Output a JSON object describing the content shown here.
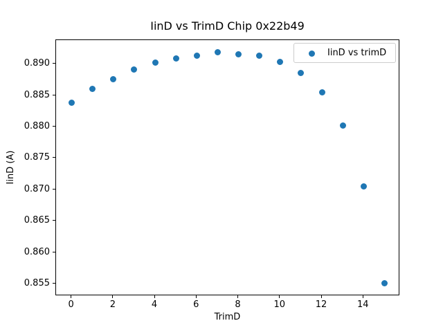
{
  "chart_data": {
    "type": "scatter",
    "title": "IinD vs TrimD Chip 0x22b49",
    "xlabel": "TrimD",
    "ylabel": "IinD (A)",
    "series": [
      {
        "name": "IinD vs trimD",
        "color": "#1f77b4",
        "x": [
          0,
          1,
          2,
          3,
          4,
          5,
          6,
          7,
          8,
          9,
          10,
          11,
          12,
          13,
          14,
          15
        ],
        "y": [
          0.8839,
          0.886,
          0.8876,
          0.8891,
          0.8902,
          0.8909,
          0.8913,
          0.8919,
          0.8916,
          0.8913,
          0.8903,
          0.8886,
          0.8855,
          0.8802,
          0.8705,
          0.8551
        ]
      }
    ],
    "xlim": [
      -0.75,
      15.75
    ],
    "ylim": [
      0.8531,
      0.8938
    ],
    "xticks": [
      0,
      2,
      4,
      6,
      8,
      10,
      12,
      14
    ],
    "xtick_labels": [
      "0",
      "2",
      "4",
      "6",
      "8",
      "10",
      "12",
      "14"
    ],
    "yticks": [
      0.855,
      0.86,
      0.865,
      0.87,
      0.875,
      0.88,
      0.885,
      0.89
    ],
    "ytick_labels": [
      "0.855",
      "0.860",
      "0.865",
      "0.870",
      "0.875",
      "0.880",
      "0.885",
      "0.890"
    ],
    "grid": false,
    "legend_position": "upper right"
  },
  "colors": {
    "background": "#ffffff",
    "text": "#000000",
    "spine": "#000000",
    "legend_border": "#cccccc",
    "marker": "#1f77b4"
  }
}
